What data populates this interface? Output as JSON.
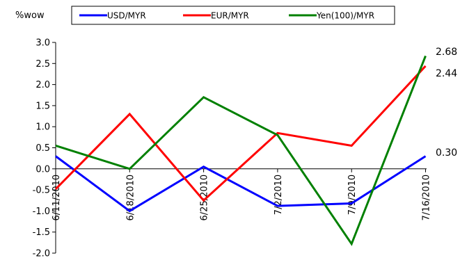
{
  "chart_data": {
    "type": "line",
    "ylabel": "%wow",
    "categories": [
      "6/11/2010",
      "6/18/2010",
      "6/25/2010",
      "7/2/2010",
      "7/9/2010",
      "7/16/2010"
    ],
    "ylim": [
      -2.0,
      3.0
    ],
    "yticks": [
      "3.0",
      "2.5",
      "2.0",
      "1.5",
      "1.0",
      "0.5",
      "0.0",
      "-0.5",
      "-1.0",
      "-1.5",
      "-2.0"
    ],
    "grid": false,
    "legend_position": "top",
    "series": [
      {
        "name": "USD/MYR",
        "color": "#0000ff",
        "values": [
          0.3,
          -1.0,
          0.05,
          -0.88,
          -0.82,
          0.3
        ]
      },
      {
        "name": "EUR/MYR",
        "color": "#ff0000",
        "values": [
          -0.48,
          1.3,
          -0.75,
          0.85,
          0.55,
          2.44
        ]
      },
      {
        "name": "Yen(100)/MYR",
        "color": "#008000",
        "values": [
          0.55,
          0.0,
          1.7,
          0.8,
          -1.78,
          2.68
        ]
      }
    ],
    "end_labels": [
      "2.68",
      "2.44",
      "0.30"
    ]
  }
}
